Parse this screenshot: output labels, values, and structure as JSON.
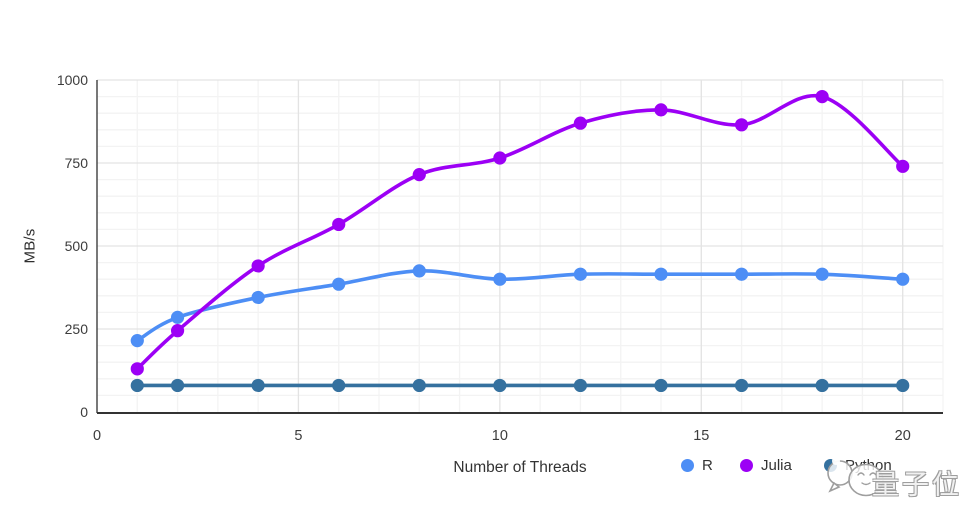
{
  "chart_data": {
    "type": "line",
    "title": "",
    "xlabel": "Number of Threads",
    "ylabel": "MB/s",
    "x": [
      1,
      2,
      4,
      6,
      8,
      10,
      12,
      14,
      16,
      18,
      20
    ],
    "series": [
      {
        "name": "R",
        "color": "#4d8ef5",
        "values": [
          215,
          285,
          345,
          385,
          425,
          400,
          415,
          415,
          415,
          415,
          400
        ]
      },
      {
        "name": "Julia",
        "color": "#9c00f5",
        "values": [
          130,
          245,
          440,
          565,
          715,
          765,
          870,
          910,
          865,
          950,
          740
        ]
      },
      {
        "name": "Python",
        "color": "#35719f",
        "values": [
          80,
          80,
          80,
          80,
          80,
          80,
          80,
          80,
          80,
          80,
          80
        ]
      }
    ],
    "xlim": [
      0,
      21
    ],
    "ylim": [
      0,
      1000
    ],
    "x_ticks": [
      0,
      5,
      10,
      15,
      20
    ],
    "y_ticks": [
      0,
      250,
      500,
      750,
      1000
    ],
    "minor_grid": {
      "x_step": 1,
      "y_step": 50
    },
    "grid": true,
    "smooth": true,
    "legend_position": "bottom"
  },
  "axes": {
    "x_title": "Number of Threads",
    "y_title": "MB/s"
  },
  "legend": {
    "items": [
      {
        "label": "R",
        "color": "#4d8ef5"
      },
      {
        "label": "Julia",
        "color": "#9c00f5"
      },
      {
        "label": "Python",
        "color": "#35719f"
      }
    ]
  },
  "watermark": {
    "text": "量子位",
    "mascot": "qbitai-mascot-icon"
  },
  "colors": {
    "axis": "#3f3f3f",
    "tick_label": "#3c3c3c",
    "grid_minor": "#f3f3f3",
    "grid_major": "#e3e3e3"
  }
}
